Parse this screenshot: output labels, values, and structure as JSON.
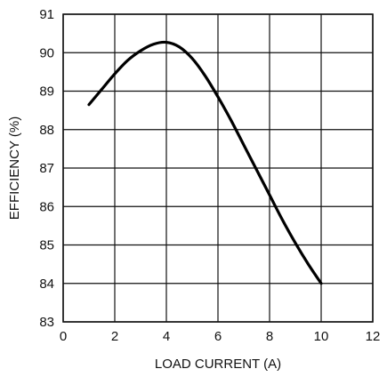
{
  "chart_data": {
    "type": "line",
    "xlabel": "LOAD CURRENT (A)",
    "ylabel": "EFFICIENCY (%)",
    "xlim": [
      0,
      12
    ],
    "ylim": [
      83,
      91
    ],
    "xticks": [
      0,
      2,
      4,
      6,
      8,
      10,
      12
    ],
    "yticks": [
      83,
      84,
      85,
      86,
      87,
      88,
      89,
      90,
      91
    ],
    "grid": true,
    "series": [
      {
        "x": [
          1,
          1.5,
          2,
          2.5,
          3,
          3.5,
          4,
          4.5,
          5,
          5.5,
          6,
          6.5,
          7,
          7.5,
          8,
          8.5,
          9,
          9.5,
          10
        ],
        "y": [
          88.65,
          89.05,
          89.45,
          89.8,
          90.05,
          90.22,
          90.27,
          90.15,
          89.85,
          89.4,
          88.85,
          88.25,
          87.6,
          86.95,
          86.3,
          85.65,
          85.05,
          84.5,
          84.0
        ]
      }
    ]
  }
}
